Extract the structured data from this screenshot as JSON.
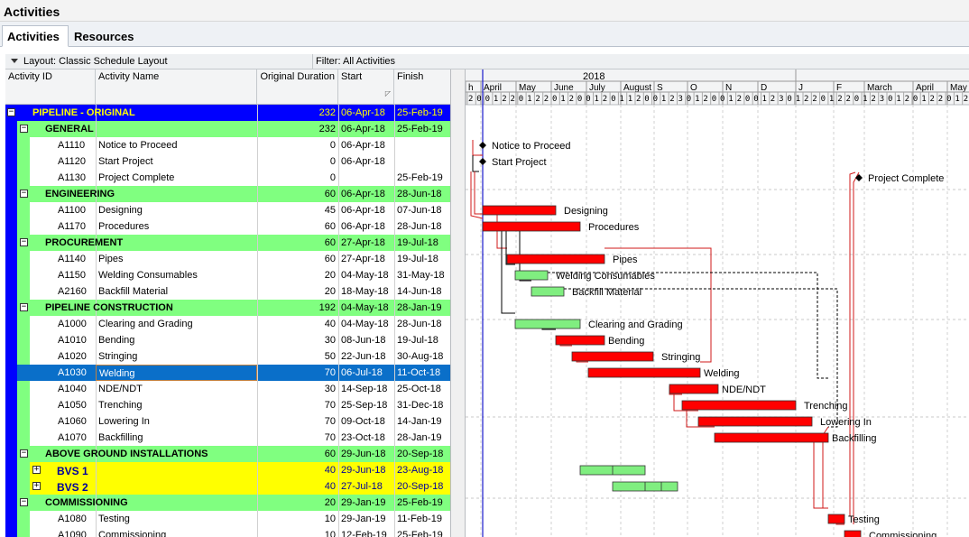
{
  "window": {
    "title": "Activities"
  },
  "tabs": [
    {
      "label": "Activities"
    },
    {
      "label": "Resources"
    }
  ],
  "toolbar": {
    "layout": "Layout: Classic Schedule Layout",
    "filter": "Filter: All Activities"
  },
  "columns": {
    "activity_id": "Activity ID",
    "activity_name": "Activity Name",
    "original_duration": "Original Duration",
    "start": "Start",
    "finish": "Finish"
  },
  "colors": {
    "project_band": "#0000ff",
    "wbs_band": "#80ff80",
    "subwbs_band": "#ffff00",
    "selected_row": "#0a6fc9",
    "critical_bar": "#ff0000",
    "normal_bar": "#80ee80",
    "link": "#d21a1a"
  },
  "rows": [
    {
      "kind": "project",
      "id": "",
      "name": "PIPELINE - ORIGINAL",
      "dur": "232",
      "start": "06-Apr-18",
      "finish": "25-Feb-19",
      "toggle": "−"
    },
    {
      "kind": "wbs",
      "id": "",
      "name": "GENERAL",
      "dur": "232",
      "start": "06-Apr-18",
      "finish": "25-Feb-19",
      "toggle": "−"
    },
    {
      "kind": "act",
      "id": "A1110",
      "name": "Notice to Proceed",
      "dur": "0",
      "start": "06-Apr-18",
      "finish": ""
    },
    {
      "kind": "act",
      "id": "A1120",
      "name": "Start Project",
      "dur": "0",
      "start": "06-Apr-18",
      "finish": ""
    },
    {
      "kind": "act",
      "id": "A1130",
      "name": "Project Complete",
      "dur": "0",
      "start": "",
      "finish": "25-Feb-19"
    },
    {
      "kind": "wbs",
      "id": "",
      "name": "ENGINEERING",
      "dur": "60",
      "start": "06-Apr-18",
      "finish": "28-Jun-18",
      "toggle": "−"
    },
    {
      "kind": "act",
      "id": "A1100",
      "name": "Designing",
      "dur": "45",
      "start": "06-Apr-18",
      "finish": "07-Jun-18"
    },
    {
      "kind": "act",
      "id": "A1170",
      "name": "Procedures",
      "dur": "60",
      "start": "06-Apr-18",
      "finish": "28-Jun-18"
    },
    {
      "kind": "wbs",
      "id": "",
      "name": "PROCUREMENT",
      "dur": "60",
      "start": "27-Apr-18",
      "finish": "19-Jul-18",
      "toggle": "−"
    },
    {
      "kind": "act",
      "id": "A1140",
      "name": "Pipes",
      "dur": "60",
      "start": "27-Apr-18",
      "finish": "19-Jul-18"
    },
    {
      "kind": "act",
      "id": "A1150",
      "name": "Welding Consumables",
      "dur": "20",
      "start": "04-May-18",
      "finish": "31-May-18"
    },
    {
      "kind": "act",
      "id": "A2160",
      "name": "Backfill Material",
      "dur": "20",
      "start": "18-May-18",
      "finish": "14-Jun-18"
    },
    {
      "kind": "wbs",
      "id": "",
      "name": "PIPELINE CONSTRUCTION",
      "dur": "192",
      "start": "04-May-18",
      "finish": "28-Jan-19",
      "toggle": "−"
    },
    {
      "kind": "act",
      "id": "A1000",
      "name": "Clearing and Grading",
      "dur": "40",
      "start": "04-May-18",
      "finish": "28-Jun-18"
    },
    {
      "kind": "act",
      "id": "A1010",
      "name": "Bending",
      "dur": "30",
      "start": "08-Jun-18",
      "finish": "19-Jul-18"
    },
    {
      "kind": "act",
      "id": "A1020",
      "name": "Stringing",
      "dur": "50",
      "start": "22-Jun-18",
      "finish": "30-Aug-18"
    },
    {
      "kind": "act",
      "id": "A1030",
      "name": "Welding",
      "dur": "70",
      "start": "06-Jul-18",
      "finish": "11-Oct-18",
      "selected": true
    },
    {
      "kind": "act",
      "id": "A1040",
      "name": "NDE/NDT",
      "dur": "30",
      "start": "14-Sep-18",
      "finish": "25-Oct-18"
    },
    {
      "kind": "act",
      "id": "A1050",
      "name": "Trenching",
      "dur": "70",
      "start": "25-Sep-18",
      "finish": "31-Dec-18"
    },
    {
      "kind": "act",
      "id": "A1060",
      "name": "Lowering In",
      "dur": "70",
      "start": "09-Oct-18",
      "finish": "14-Jan-19"
    },
    {
      "kind": "act",
      "id": "A1070",
      "name": "Backfilling",
      "dur": "70",
      "start": "23-Oct-18",
      "finish": "28-Jan-19"
    },
    {
      "kind": "wbs",
      "id": "",
      "name": "ABOVE GROUND INSTALLATIONS",
      "dur": "60",
      "start": "29-Jun-18",
      "finish": "20-Sep-18",
      "toggle": "−"
    },
    {
      "kind": "sub",
      "id": "",
      "name": "BVS 1",
      "dur": "40",
      "start": "29-Jun-18",
      "finish": "23-Aug-18",
      "toggle": "+"
    },
    {
      "kind": "sub",
      "id": "",
      "name": "BVS 2",
      "dur": "40",
      "start": "27-Jul-18",
      "finish": "20-Sep-18",
      "toggle": "+"
    },
    {
      "kind": "wbs",
      "id": "",
      "name": "COMMISSIONING",
      "dur": "20",
      "start": "29-Jan-19",
      "finish": "25-Feb-19",
      "toggle": "−"
    },
    {
      "kind": "act",
      "id": "A1080",
      "name": "Testing",
      "dur": "10",
      "start": "29-Jan-19",
      "finish": "11-Feb-19"
    },
    {
      "kind": "act",
      "id": "A1090",
      "name": "Commissioning",
      "dur": "10",
      "start": "12-Feb-19",
      "finish": "25-Feb-19"
    }
  ],
  "timescale": {
    "year": "2018",
    "months": [
      "h",
      "April",
      "May",
      "June",
      "July",
      "August",
      "S",
      "O",
      "N",
      "D",
      "J",
      "F",
      "March",
      "April",
      "May"
    ],
    "weeks_label": "2|0|0|1|2|2|0|1|2|2|0|1|2|0|0|1|2|0|1|1|2|0|0|1|2|3|0|1|2|0|0|1|2|0|0|1|2|3|0|1|2|2|0|1|2|2|0|1|2|3|0|1|2|0|1|2|2|0|1|2"
  },
  "gantt": {
    "bars": [
      {
        "row": 2,
        "type": "milestone",
        "label": "Notice to Proceed"
      },
      {
        "row": 3,
        "type": "milestone",
        "label": "Start Project"
      },
      {
        "row": 4,
        "type": "milestone",
        "label": "Project Complete"
      },
      {
        "row": 6,
        "type": "critical",
        "label": "Designing"
      },
      {
        "row": 7,
        "type": "critical",
        "label": "Procedures"
      },
      {
        "row": 9,
        "type": "critical",
        "label": "Pipes"
      },
      {
        "row": 10,
        "type": "normal",
        "label": "Welding Consumables"
      },
      {
        "row": 11,
        "type": "normal",
        "label": "Backfill Material"
      },
      {
        "row": 13,
        "type": "normal",
        "label": "Clearing and Grading"
      },
      {
        "row": 14,
        "type": "critical",
        "label": "Bending"
      },
      {
        "row": 15,
        "type": "critical",
        "label": "Stringing"
      },
      {
        "row": 16,
        "type": "critical",
        "label": "Welding"
      },
      {
        "row": 17,
        "type": "critical",
        "label": "NDE/NDT"
      },
      {
        "row": 18,
        "type": "critical",
        "label": "Trenching"
      },
      {
        "row": 19,
        "type": "critical",
        "label": "Lowering In"
      },
      {
        "row": 20,
        "type": "critical",
        "label": "Backfilling"
      },
      {
        "row": 22,
        "type": "normal",
        "label": ""
      },
      {
        "row": 23,
        "type": "normal",
        "label": ""
      },
      {
        "row": 25,
        "type": "critical",
        "label": "Testing"
      },
      {
        "row": 26,
        "type": "critical",
        "label": "Commissioning"
      }
    ]
  }
}
